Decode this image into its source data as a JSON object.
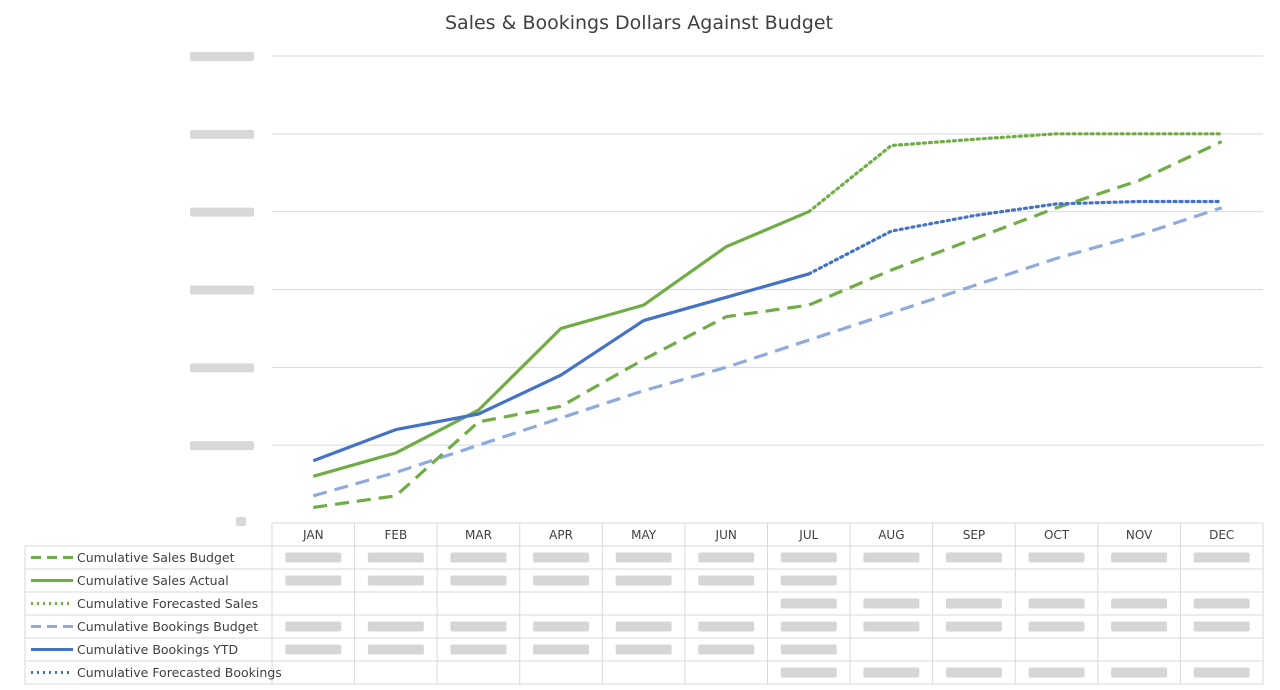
{
  "chart_data": {
    "type": "line",
    "title": "Sales & Bookings Dollars Against Budget",
    "categories": [
      "JAN",
      "FEB",
      "MAR",
      "APR",
      "MAY",
      "JUN",
      "JUL",
      "AUG",
      "SEP",
      "OCT",
      "NOV",
      "DEC"
    ],
    "ylim": [
      0,
      6
    ],
    "y_ticks_visible": false,
    "grid": "horizontal",
    "legend_placement": "data-table",
    "series": [
      {
        "name": "Cumulative Sales Budget",
        "style": "dashed",
        "color": "#70ad47",
        "values": [
          0.2,
          0.35,
          1.3,
          1.5,
          2.1,
          2.65,
          2.8,
          3.25,
          3.65,
          4.05,
          4.4,
          4.9
        ]
      },
      {
        "name": "Cumulative Sales Actual",
        "style": "solid",
        "color": "#70ad47",
        "values": [
          0.6,
          0.9,
          1.45,
          2.5,
          2.8,
          3.55,
          4.0,
          null,
          null,
          null,
          null,
          null
        ]
      },
      {
        "name": "Cumulative Forecasted Sales",
        "style": "dotted",
        "color": "#70ad47",
        "values": [
          null,
          null,
          null,
          null,
          null,
          null,
          4.0,
          4.85,
          4.93,
          5.0,
          5.0,
          5.0
        ]
      },
      {
        "name": "Cumulative Bookings Budget",
        "style": "dashed",
        "color": "#8faadc",
        "values": [
          0.35,
          0.65,
          1.0,
          1.35,
          1.7,
          2.0,
          2.35,
          2.7,
          3.05,
          3.4,
          3.7,
          4.05
        ]
      },
      {
        "name": "Cumulative Bookings YTD",
        "style": "solid",
        "color": "#4472c4",
        "values": [
          0.8,
          1.2,
          1.4,
          1.9,
          2.6,
          2.9,
          3.2,
          null,
          null,
          null,
          null,
          null
        ]
      },
      {
        "name": "Cumulative Forecasted Bookings",
        "style": "dotted",
        "color": "#4472c4",
        "values": [
          null,
          null,
          null,
          null,
          null,
          null,
          3.2,
          3.75,
          3.95,
          4.1,
          4.13,
          4.13
        ]
      }
    ]
  }
}
